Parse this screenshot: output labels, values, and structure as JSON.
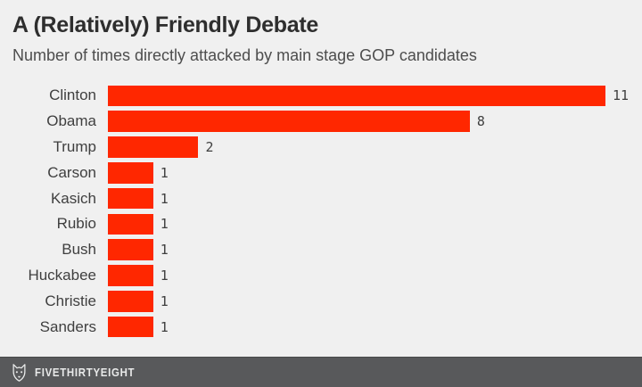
{
  "chart_data": {
    "type": "bar",
    "orientation": "horizontal",
    "title": "A (Relatively) Friendly Debate",
    "subtitle": "Number of times directly attacked by main stage GOP candidates",
    "categories": [
      "Clinton",
      "Obama",
      "Trump",
      "Carson",
      "Kasich",
      "Rubio",
      "Bush",
      "Huckabee",
      "Christie",
      "Sanders"
    ],
    "values": [
      11,
      8,
      2,
      1,
      1,
      1,
      1,
      1,
      1,
      1
    ],
    "xlabel": "",
    "ylabel": "",
    "xlim": [
      0,
      11
    ],
    "grid": false,
    "legend": false,
    "value_labels_shown": true
  },
  "footer": {
    "brand": "FIVETHIRTYEIGHT",
    "logo": "fivethirtyeight-fox-icon"
  },
  "colors": {
    "background": "#F0F0F0",
    "bar": "#FF2700",
    "title": "#2E2E2E",
    "subtitle": "#4D4D4D",
    "labels": "#3F3F3F",
    "values": "#3F3F3F",
    "footer_background": "#58595B",
    "footer_text": "#E9EAEA"
  }
}
